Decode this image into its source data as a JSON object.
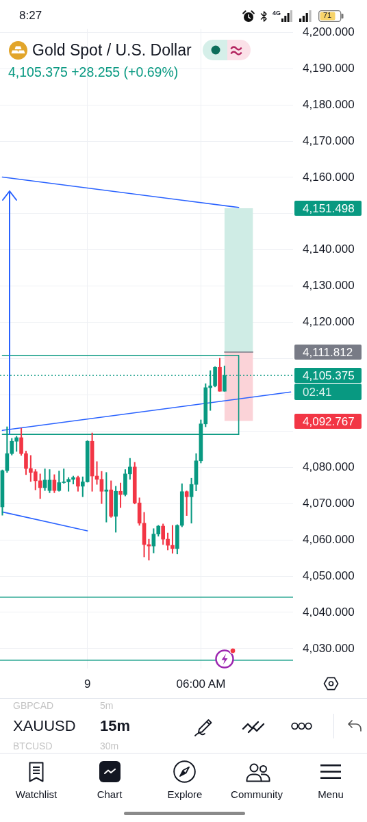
{
  "chart_data": {
    "type": "candlestick",
    "title": "Gold Spot / U.S. Dollar",
    "subtitle": "4,105.375 +28.255 (+0.69%)",
    "categories": [
      null,
      null,
      null,
      null,
      null,
      null,
      null,
      null,
      null,
      null,
      null,
      null,
      null,
      null,
      null,
      null,
      null,
      null,
      "9",
      null,
      null,
      null,
      null,
      null,
      null,
      null,
      null,
      null,
      null,
      null,
      null,
      null,
      null,
      null,
      null,
      null,
      null,
      null,
      null,
      null,
      null,
      null,
      "06:00 AM",
      null,
      null,
      null,
      null,
      null,
      null,
      null,
      null,
      null,
      null,
      null,
      null,
      null,
      null,
      null,
      null,
      null,
      null,
      null
    ],
    "ohlc": [
      [
        4069.1,
        4079.3,
        4066.8,
        4079.1
      ],
      [
        4079.1,
        4091.2,
        4078.6,
        4083.8
      ],
      [
        4083.8,
        4088.0,
        4083.4,
        4087.2
      ],
      [
        4087.2,
        4088.6,
        4084.4,
        4088.2
      ],
      [
        4088.2,
        4090.8,
        4083.3,
        4083.8
      ],
      [
        4083.8,
        4084.5,
        4078.0,
        4079.7
      ],
      [
        4079.7,
        4083.3,
        4076.1,
        4078.6
      ],
      [
        4078.8,
        4079.4,
        4073.8,
        4076.3
      ],
      [
        4076.3,
        4078.2,
        4071.4,
        4074.4
      ],
      [
        4074.4,
        4079.6,
        4073.6,
        4076.5
      ],
      [
        4073.6,
        4079.4,
        4073.0,
        4076.5
      ],
      [
        4076.5,
        4078.0,
        4073.0,
        4073.6
      ],
      [
        4073.6,
        4079.0,
        4073.4,
        4075.8
      ],
      [
        4075.8,
        4079.6,
        4075.6,
        4076.0
      ],
      [
        4076.0,
        4077.2,
        4073.4,
        4076.7
      ],
      [
        4076.7,
        4077.6,
        4075.4,
        4077.2
      ],
      [
        4077.2,
        4077.6,
        4073.4,
        4074.8
      ],
      [
        4074.8,
        4077.4,
        4071.9,
        4076.0
      ],
      [
        4076.0,
        4087.4,
        4075.9,
        4087.2
      ],
      [
        4087.2,
        4089.5,
        4073.4,
        4077.6
      ],
      [
        4077.6,
        4081.6,
        4075.3,
        4076.7
      ],
      [
        4076.7,
        4078.9,
        4070.0,
        4073.4
      ],
      [
        4073.4,
        4078.6,
        4064.9,
        4073.8
      ],
      [
        4073.8,
        4076.3,
        4066.2,
        4066.5
      ],
      [
        4066.5,
        4074.8,
        4062.1,
        4073.4
      ],
      [
        4073.4,
        4075.7,
        4068.9,
        4072.5
      ],
      [
        4072.5,
        4079.4,
        4072.1,
        4078.2
      ],
      [
        4078.2,
        4082.5,
        4076.7,
        4080.1
      ],
      [
        4080.1,
        4081.4,
        4069.9,
        4070.2
      ],
      [
        4070.2,
        4071.6,
        4064.0,
        4064.6
      ],
      [
        4064.6,
        4067.6,
        4055.3,
        4058.7
      ],
      [
        4058.7,
        4060.2,
        4054.4,
        4058.3
      ],
      [
        4058.3,
        4063.1,
        4056.4,
        4061.6
      ],
      [
        4061.6,
        4064.0,
        4061.0,
        4063.8
      ],
      [
        4063.8,
        4064.4,
        4058.7,
        4060.2
      ],
      [
        4060.2,
        4061.9,
        4057.2,
        4058.5
      ],
      [
        4058.5,
        4064.0,
        4056.3,
        4057.6
      ],
      [
        4057.6,
        4064.2,
        4056.1,
        4064.0
      ],
      [
        4064.0,
        4075.5,
        4063.6,
        4073.3
      ],
      [
        4073.3,
        4073.5,
        4066.7,
        4071.9
      ],
      [
        4071.9,
        4077.0,
        4064.6,
        4075.3
      ],
      [
        4075.3,
        4083.8,
        4073.5,
        4081.8
      ],
      [
        4081.8,
        4093.1,
        4081.2,
        4092.0
      ],
      [
        4092.0,
        4103.1,
        4091.2,
        4102.0
      ],
      [
        4102.0,
        4106.7,
        4095.7,
        4102.5
      ],
      [
        4102.5,
        4107.8,
        4102.2,
        4107.6
      ],
      [
        4107.6,
        4110.1,
        4101.0,
        4101.0
      ],
      [
        4101.0,
        4108.0,
        4101.0,
        4105.375
      ],
      null,
      null,
      null,
      null,
      null,
      null,
      null,
      null,
      null,
      null,
      null,
      null,
      null,
      null
    ],
    "colors": [
      "#089981",
      "#089981",
      "#089981",
      "#089981",
      "#f23645",
      "#f23645",
      "#f23645",
      "#f23645",
      "#f23645",
      "#089981",
      "#089981",
      "#f23645",
      "#089981",
      "#089981",
      "#089981",
      "#089981",
      "#f23645",
      "#089981",
      "#089981",
      "#f23645",
      "#f23645",
      "#f23645",
      "#089981",
      "#f23645",
      "#089981",
      "#f23645",
      "#089981",
      "#089981",
      "#f23645",
      "#f23645",
      "#f23645",
      "#f23645",
      "#089981",
      "#089981",
      "#f23645",
      "#f23645",
      "#f23645",
      "#089981",
      "#089981",
      "#f23645",
      "#089981",
      "#089981",
      "#089981",
      "#089981",
      "#089981",
      "#089981",
      "#f23645",
      "#089981",
      null,
      null,
      null,
      null,
      null,
      null,
      null,
      null,
      null,
      null,
      null,
      null,
      null,
      null
    ],
    "series": [
      {
        "type": "line",
        "color": "#787b86",
        "values": [
          null,
          null,
          null,
          null,
          null,
          null,
          null,
          null,
          null,
          null,
          null,
          null,
          null,
          null,
          null,
          null,
          null,
          null,
          null,
          null,
          null,
          null,
          null,
          null,
          null,
          null,
          null,
          null,
          null,
          null,
          null,
          null,
          null,
          null,
          null,
          null,
          null,
          null,
          null,
          null,
          null,
          null,
          null,
          null,
          null,
          null,
          null,
          4111.8,
          null,
          null,
          null,
          null,
          null,
          4111.8,
          null,
          null,
          null,
          null,
          null,
          null,
          null,
          null
        ]
      },
      {
        "type": "step",
        "color": "#089981",
        "values": [
          4110.9,
          null,
          null,
          null,
          null,
          null,
          null,
          null,
          null,
          null,
          null,
          null,
          null,
          null,
          null,
          null,
          null,
          null,
          null,
          null,
          null,
          null,
          null,
          null,
          null,
          null,
          null,
          null,
          null,
          null,
          null,
          null,
          null,
          null,
          null,
          null,
          null,
          null,
          null,
          null,
          null,
          null,
          null,
          null,
          null,
          null,
          null,
          null,
          null,
          null,
          4089.1,
          null,
          null,
          null,
          null,
          null,
          null,
          null,
          null,
          null,
          null,
          null
        ]
      },
      {
        "type": "line",
        "color": "#089981",
        "values": [
          4089.1,
          null,
          null,
          null,
          null,
          null,
          null,
          null,
          null,
          null,
          null,
          null,
          null,
          null,
          null,
          null,
          null,
          null,
          null,
          null,
          null,
          null,
          null,
          null,
          null,
          null,
          null,
          null,
          null,
          null,
          null,
          null,
          null,
          null,
          null,
          null,
          null,
          null,
          null,
          null,
          null,
          null,
          null,
          null,
          null,
          null,
          null,
          null,
          null,
          null,
          4089.1,
          null,
          null,
          null,
          null,
          null,
          null,
          null,
          null,
          null,
          null,
          null
        ]
      },
      {
        "type": "line",
        "color": "#2962ff",
        "values": [
          4160.1,
          null,
          null,
          null,
          null,
          null,
          null,
          null,
          null,
          null,
          null,
          null,
          null,
          null,
          null,
          null,
          null,
          null,
          null,
          null,
          null,
          null,
          null,
          null,
          null,
          null,
          null,
          null,
          null,
          null,
          null,
          null,
          null,
          null,
          null,
          null,
          null,
          null,
          null,
          null,
          null,
          null,
          null,
          null,
          null,
          null,
          null,
          null,
          null,
          null,
          4151.7,
          null,
          null,
          null,
          null,
          null,
          null,
          null,
          null,
          null,
          null,
          null
        ]
      },
      {
        "type": "line",
        "color": "#2962ff",
        "values": [
          4090.2,
          null,
          null,
          null,
          null,
          null,
          null,
          null,
          null,
          null,
          null,
          null,
          null,
          null,
          null,
          null,
          null,
          null,
          null,
          null,
          null,
          null,
          null,
          null,
          null,
          null,
          null,
          null,
          null,
          null,
          null,
          null,
          null,
          null,
          null,
          null,
          null,
          null,
          null,
          null,
          null,
          null,
          null,
          null,
          null,
          null,
          null,
          null,
          null,
          null,
          null,
          null,
          null,
          null,
          null,
          null,
          null,
          null,
          null,
          null,
          null,
          4100.8
        ]
      },
      {
        "type": "line",
        "color": "#2962ff",
        "values": [
          4067.7,
          null,
          null,
          null,
          null,
          null,
          null,
          null,
          null,
          null,
          null,
          null,
          null,
          null,
          null,
          null,
          null,
          null,
          4062.5,
          null,
          null,
          null,
          null,
          null,
          null,
          null,
          null,
          null,
          null,
          null,
          null,
          null,
          null,
          null,
          null,
          null,
          null,
          null,
          null,
          null,
          null,
          null,
          null,
          null,
          null,
          null,
          null,
          null,
          null,
          null,
          null,
          null,
          null,
          null,
          null,
          null,
          null,
          null,
          null,
          null,
          null,
          null
        ]
      }
    ],
    "ylim": [
      4024.5,
      4201
    ],
    "yticks": [
      {
        "value": 4030,
        "label": "4,030.000"
      },
      {
        "value": 4040,
        "label": "4,040.000"
      },
      {
        "value": 4050,
        "label": "4,050.000"
      },
      {
        "value": 4060,
        "label": "4,060.000"
      },
      {
        "value": 4070,
        "label": "4,070.000"
      },
      {
        "value": 4080,
        "label": "4,080.000"
      },
      {
        "value": 4090,
        "label": null
      },
      {
        "value": 4100,
        "label": null
      },
      {
        "value": 4110,
        "label": null
      },
      {
        "value": 4120,
        "label": "4,120.000"
      },
      {
        "value": 4130,
        "label": "4,130.000"
      },
      {
        "value": 4140,
        "label": "4,140.000"
      },
      {
        "value": 4150,
        "label": null
      },
      {
        "value": 4160,
        "label": "4,160.000"
      },
      {
        "value": 4170,
        "label": "4,170.000"
      },
      {
        "value": 4180,
        "label": "4,180.000"
      },
      {
        "value": 4190,
        "label": "4,190.000"
      },
      {
        "value": 4200,
        "label": "4,200.000"
      }
    ],
    "grid": true,
    "bands": [
      {
        "axis": "y",
        "from": 4111.8,
        "to": 4151.5,
        "color": "#cfece5"
      },
      {
        "axis": "y",
        "from": 4092.8,
        "to": 4111.8,
        "color": "#fbd3d8"
      }
    ],
    "ref_lines": [
      {
        "axis": "y",
        "value": 4105.375,
        "label": "4,105.375",
        "color": "#089981",
        "line_style": "dotted"
      },
      {
        "axis": "y",
        "value": 4044.2,
        "color": "#089981"
      },
      {
        "axis": "y",
        "value": 4026.8,
        "color": "#089981"
      }
    ],
    "annotations": [
      "4,151.498",
      "4,111.812",
      "02:41",
      "4,092.767",
      "8:27",
      "4G",
      "71",
      "GBPCAD",
      "5m",
      "XAUUSD",
      "15m",
      "BTCUSD",
      "30m",
      "Watchlist",
      "Chart",
      "Explore",
      "Community",
      "Menu"
    ]
  }
}
